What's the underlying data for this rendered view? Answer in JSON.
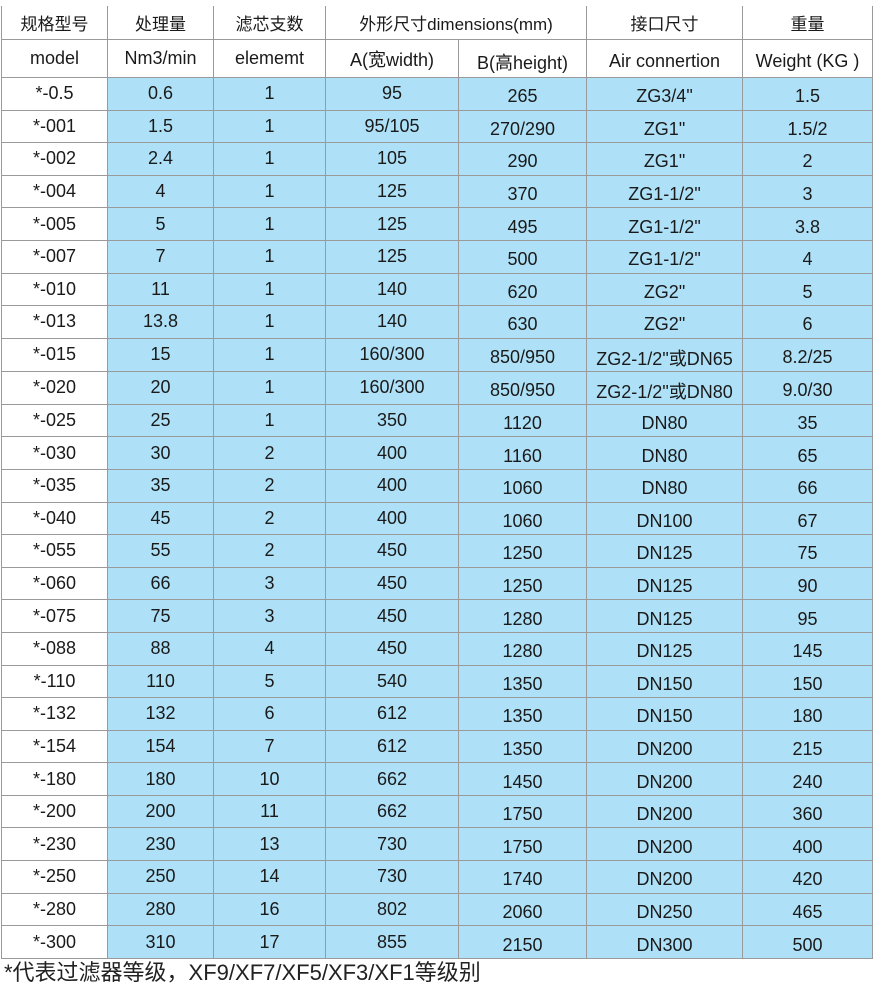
{
  "header_cn": [
    "规格型号",
    "处理量",
    "滤芯支数",
    "外形尺寸dimensions(mm)",
    "接口尺寸",
    "重量"
  ],
  "header_en": [
    "model",
    "Nm3/min",
    "elememt",
    "A(宽width)",
    "B(高height)",
    "Air connertion",
    "Weight (KG )"
  ],
  "rows": [
    [
      "*-0.5",
      "0.6",
      "1",
      "95",
      "265",
      "ZG3/4\"",
      "1.5"
    ],
    [
      "*-001",
      "1.5",
      "1",
      "95/105",
      "270/290",
      "ZG1\"",
      "1.5/2"
    ],
    [
      "*-002",
      "2.4",
      "1",
      "105",
      "290",
      "ZG1\"",
      "2"
    ],
    [
      "*-004",
      "4",
      "1",
      "125",
      "370",
      "ZG1-1/2\"",
      "3"
    ],
    [
      "*-005",
      "5",
      "1",
      "125",
      "495",
      "ZG1-1/2\"",
      "3.8"
    ],
    [
      "*-007",
      "7",
      "1",
      "125",
      "500",
      "ZG1-1/2\"",
      "4"
    ],
    [
      "*-010",
      "11",
      "1",
      "140",
      "620",
      "ZG2\"",
      "5"
    ],
    [
      "*-013",
      "13.8",
      "1",
      "140",
      "630",
      "ZG2\"",
      "6"
    ],
    [
      "*-015",
      "15",
      "1",
      "160/300",
      "850/950",
      "ZG2-1/2\"或DN65",
      "8.2/25"
    ],
    [
      "*-020",
      "20",
      "1",
      "160/300",
      "850/950",
      "ZG2-1/2\"或DN80",
      "9.0/30"
    ],
    [
      "*-025",
      "25",
      "1",
      "350",
      "1120",
      "DN80",
      "35"
    ],
    [
      "*-030",
      "30",
      "2",
      "400",
      "1160",
      "DN80",
      "65"
    ],
    [
      "*-035",
      "35",
      "2",
      "400",
      "1060",
      "DN80",
      "66"
    ],
    [
      "*-040",
      "45",
      "2",
      "400",
      "1060",
      "DN100",
      "67"
    ],
    [
      "*-055",
      "55",
      "2",
      "450",
      "1250",
      "DN125",
      "75"
    ],
    [
      "*-060",
      "66",
      "3",
      "450",
      "1250",
      "DN125",
      "90"
    ],
    [
      "*-075",
      "75",
      "3",
      "450",
      "1280",
      "DN125",
      "95"
    ],
    [
      "*-088",
      "88",
      "4",
      "450",
      "1280",
      "DN125",
      "145"
    ],
    [
      "*-110",
      "110",
      "5",
      "540",
      "1350",
      "DN150",
      "150"
    ],
    [
      "*-132",
      "132",
      "6",
      "612",
      "1350",
      "DN150",
      "180"
    ],
    [
      "*-154",
      "154",
      "7",
      "612",
      "1350",
      "DN200",
      "215"
    ],
    [
      "*-180",
      "180",
      "10",
      "662",
      "1450",
      "DN200",
      "240"
    ],
    [
      "*-200",
      "200",
      "11",
      "662",
      "1750",
      "DN200",
      "360"
    ],
    [
      "*-230",
      "230",
      "13",
      "730",
      "1750",
      "DN200",
      "400"
    ],
    [
      "*-250",
      "250",
      "14",
      "730",
      "1740",
      "DN200",
      "420"
    ],
    [
      "*-280",
      "280",
      "16",
      "802",
      "2060",
      "DN250",
      "465"
    ],
    [
      "*-300",
      "310",
      "17",
      "855",
      "2150",
      "DN300",
      "500"
    ]
  ],
  "footnote": "*代表过滤器等级，XF9/XF7/XF5/XF3/XF1等级别",
  "colors": {
    "cell_bg": "#aee1f7",
    "border": "#9a9a9a"
  }
}
